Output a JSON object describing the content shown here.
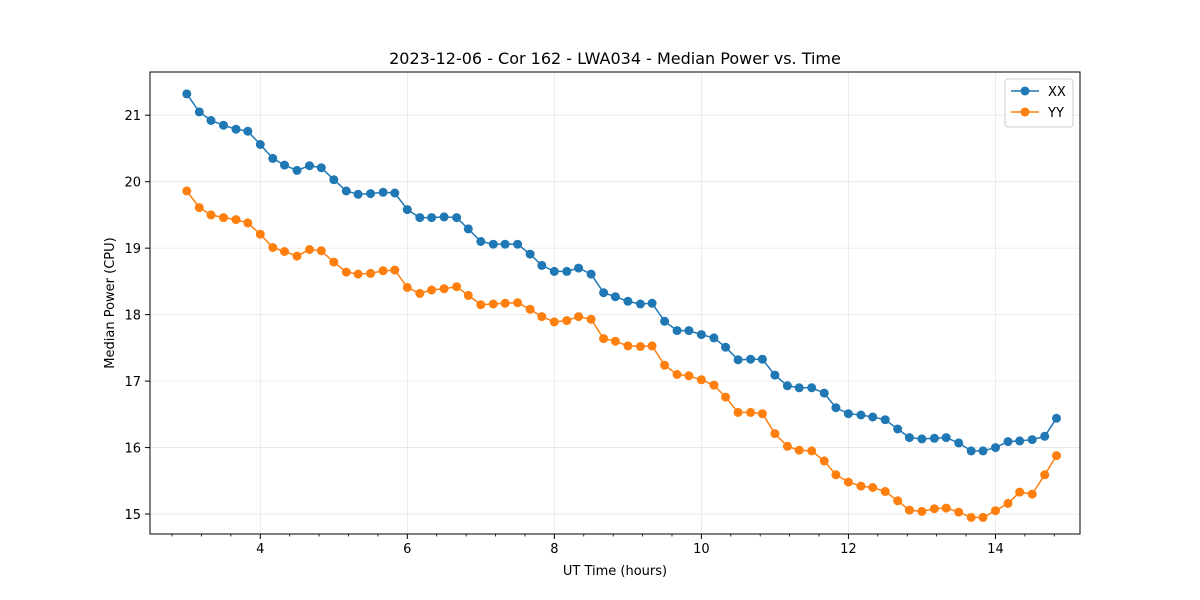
{
  "chart_data": {
    "type": "line",
    "title": "2023-12-06 - Cor 162 - LWA034 - Median Power vs. Time",
    "xlabel": "UT Time (hours)",
    "ylabel": "Median Power (CPU)",
    "xlim": [
      2.5,
      15.15
    ],
    "ylim": [
      14.7,
      21.65
    ],
    "xticks": [
      4,
      6,
      8,
      10,
      12,
      14
    ],
    "xtick_labels": [
      "4",
      "6",
      "8",
      "10",
      "12",
      "14"
    ],
    "yticks": [
      15,
      16,
      17,
      18,
      19,
      20,
      21
    ],
    "ytick_labels": [
      "15",
      "16",
      "17",
      "18",
      "19",
      "20",
      "21"
    ],
    "grid": true,
    "legend_position": "top-right",
    "x": [
      3.0,
      3.17,
      3.33,
      3.5,
      3.67,
      3.83,
      4.0,
      4.17,
      4.33,
      4.5,
      4.67,
      4.83,
      5.0,
      5.17,
      5.33,
      5.5,
      5.67,
      5.83,
      6.0,
      6.17,
      6.33,
      6.5,
      6.67,
      6.83,
      7.0,
      7.17,
      7.33,
      7.5,
      7.67,
      7.83,
      8.0,
      8.17,
      8.33,
      8.5,
      8.67,
      8.83,
      9.0,
      9.17,
      9.33,
      9.5,
      9.67,
      9.83,
      10.0,
      10.17,
      10.33,
      10.5,
      10.67,
      10.83,
      11.0,
      11.17,
      11.33,
      11.5,
      11.67,
      11.83,
      12.0,
      12.17,
      12.33,
      12.5,
      12.67,
      12.83,
      13.0,
      13.17,
      13.33,
      13.5,
      13.67,
      13.83,
      14.0,
      14.17,
      14.33,
      14.5,
      14.67,
      14.83
    ],
    "series": [
      {
        "name": "XX",
        "color": "#1f77b4",
        "values": [
          21.32,
          21.05,
          20.92,
          20.85,
          20.79,
          20.76,
          20.56,
          20.35,
          20.25,
          20.17,
          20.24,
          20.21,
          20.03,
          19.86,
          19.81,
          19.82,
          19.84,
          19.83,
          19.58,
          19.46,
          19.46,
          19.47,
          19.46,
          19.29,
          19.1,
          19.06,
          19.06,
          19.06,
          18.91,
          18.74,
          18.65,
          18.65,
          18.7,
          18.61,
          18.33,
          18.27,
          18.2,
          18.16,
          18.17,
          17.9,
          17.76,
          17.76,
          17.7,
          17.65,
          17.51,
          17.32,
          17.33,
          17.33,
          17.09,
          16.93,
          16.9,
          16.9,
          16.82,
          16.6,
          16.51,
          16.49,
          16.46,
          16.42,
          16.28,
          16.15,
          16.13,
          16.14,
          16.15,
          16.07,
          15.95,
          15.95,
          16.0,
          16.09,
          16.1,
          16.12,
          16.17,
          16.44
        ]
      },
      {
        "name": "YY",
        "color": "#ff7f0e",
        "values": [
          19.86,
          19.61,
          19.5,
          19.46,
          19.43,
          19.38,
          19.21,
          19.01,
          18.95,
          18.88,
          18.98,
          18.96,
          18.79,
          18.64,
          18.61,
          18.62,
          18.66,
          18.67,
          18.41,
          18.32,
          18.37,
          18.39,
          18.42,
          18.29,
          18.15,
          18.16,
          18.17,
          18.18,
          18.08,
          17.97,
          17.89,
          17.91,
          17.97,
          17.93,
          17.64,
          17.6,
          17.53,
          17.52,
          17.53,
          17.24,
          17.1,
          17.08,
          17.02,
          16.94,
          16.76,
          16.53,
          16.53,
          16.51,
          16.21,
          16.02,
          15.96,
          15.95,
          15.8,
          15.59,
          15.48,
          15.42,
          15.4,
          15.34,
          15.2,
          15.06,
          15.04,
          15.08,
          15.09,
          15.03,
          14.95,
          14.95,
          15.05,
          15.16,
          15.33,
          15.3,
          15.59,
          15.88
        ]
      }
    ]
  }
}
